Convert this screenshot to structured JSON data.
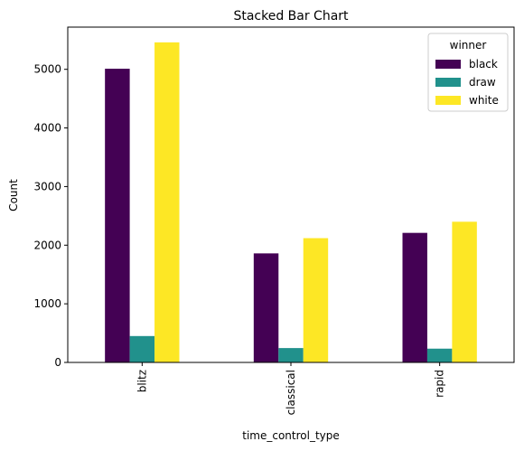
{
  "chart_data": {
    "type": "bar",
    "title": "Stacked Bar Chart",
    "xlabel": "time_control_type",
    "ylabel": "Count",
    "categories": [
      "blitz",
      "classical",
      "rapid"
    ],
    "series": [
      {
        "name": "black",
        "color": "#440154",
        "values": [
          5010,
          1860,
          2210
        ]
      },
      {
        "name": "draw",
        "color": "#21918c",
        "values": [
          450,
          245,
          235
        ]
      },
      {
        "name": "white",
        "color": "#fde725",
        "values": [
          5460,
          2120,
          2400
        ]
      }
    ],
    "ylim": [
      0,
      5720
    ],
    "yticks": [
      0,
      1000,
      2000,
      3000,
      4000,
      5000
    ],
    "legend": {
      "title": "winner",
      "placement": "top-right"
    },
    "grid": false
  }
}
